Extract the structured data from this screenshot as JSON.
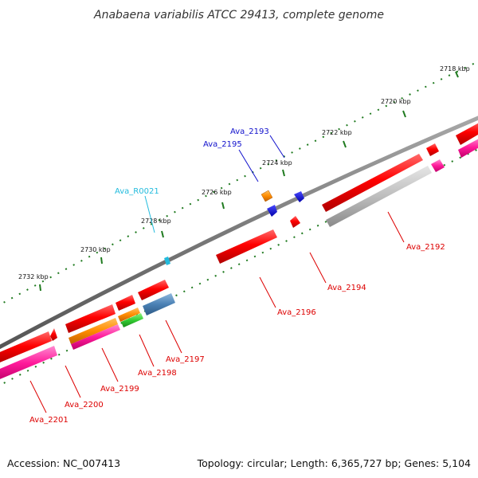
{
  "title": "Anabaena variabilis ATCC 29413, complete genome",
  "footer": {
    "accession": "Accession: NC_007413",
    "summary": "Topology: circular; Length: 6,365,727 bp; Genes: 5,104"
  },
  "colors": {
    "backbone": "#808080",
    "tick_dots": "#1f7a1f",
    "label_red": "#dd0000",
    "label_blue": "#1010cc",
    "label_cyan": "#22bbdd"
  },
  "ticks": [
    "2718 kbp",
    "2720 kbp",
    "2722 kbp",
    "2724 kbp",
    "2726 kbp",
    "2728 kbp",
    "2730 kbp",
    "2732 kbp"
  ],
  "labels": {
    "ava_2193": "Ava_2193",
    "ava_2195": "Ava_2195",
    "ava_r0021": "Ava_R0021",
    "ava_2192": "Ava_2192",
    "ava_2194": "Ava_2194",
    "ava_2196": "Ava_2196",
    "ava_2197": "Ava_2197",
    "ava_2198": "Ava_2198",
    "ava_2199": "Ava_2199",
    "ava_2200": "Ava_2200",
    "ava_2201": "Ava_2201"
  }
}
